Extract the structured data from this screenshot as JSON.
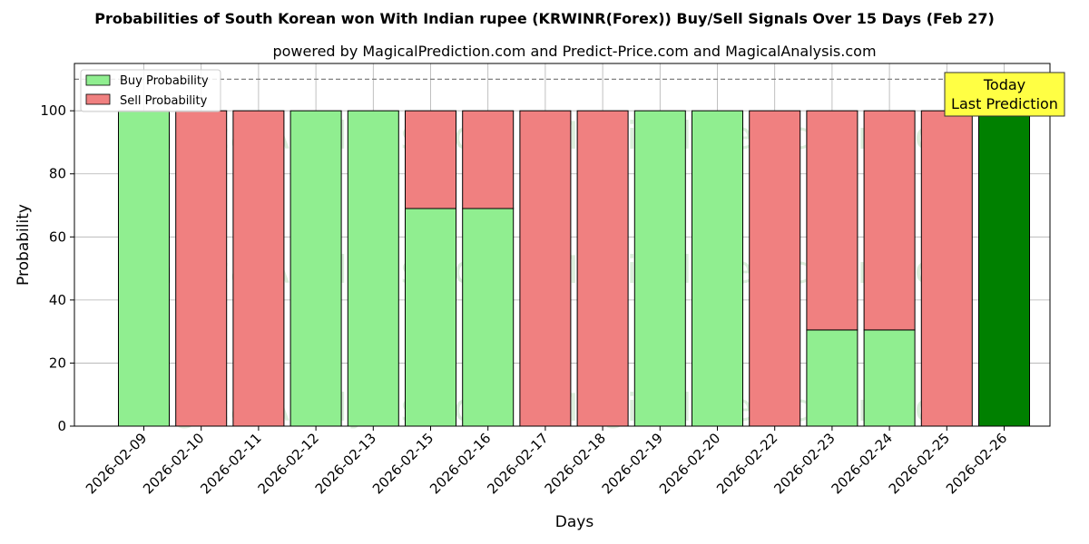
{
  "chart_data": {
    "type": "bar",
    "stacked": true,
    "title": "Probabilities of South Korean won With Indian rupee (KRWINR(Forex)) Buy/Sell Signals Over 15 Days (Feb 27)",
    "subtitle": "powered by MagicalPrediction.com and Predict-Price.com and MagicalAnalysis.com",
    "xlabel": "Days",
    "ylabel": "Probability",
    "ylim": [
      0,
      115
    ],
    "yticks": [
      0,
      20,
      40,
      60,
      80,
      100
    ],
    "grid": true,
    "legend_position": "top-left",
    "reference_line": 110,
    "categories": [
      "2026-02-09",
      "2026-02-10",
      "2026-02-11",
      "2026-02-12",
      "2026-02-13",
      "2026-02-15",
      "2026-02-16",
      "2026-02-17",
      "2026-02-18",
      "2026-02-19",
      "2026-02-20",
      "2026-02-22",
      "2026-02-23",
      "2026-02-24",
      "2026-02-25",
      "2026-02-26"
    ],
    "series": [
      {
        "name": "Buy Probability",
        "color": "#90ee90",
        "values": [
          100,
          0,
          0,
          100,
          100,
          69,
          69,
          0,
          0,
          100,
          100,
          0,
          30.5,
          30.5,
          0,
          100
        ]
      },
      {
        "name": "Sell Probability",
        "color": "#f08080",
        "values": [
          0,
          100,
          100,
          0,
          0,
          31,
          31,
          100,
          100,
          0,
          0,
          100,
          69.5,
          69.5,
          100,
          0
        ]
      }
    ],
    "highlight": {
      "index": 15,
      "color": "#008000"
    },
    "annotation": {
      "line1": "Today",
      "line2": "Last Prediction",
      "background": "#ffff44"
    },
    "watermarks": [
      "MagicalAnalysis.com",
      "MagicalPrediction.com"
    ]
  }
}
